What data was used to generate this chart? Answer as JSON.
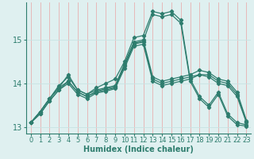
{
  "xlabel": "Humidex (Indice chaleur)",
  "bg_color": "#dff0f0",
  "grid_color": "#c8e4e4",
  "line_color": "#2e7d6e",
  "xlim": [
    -0.5,
    23.5
  ],
  "ylim": [
    12.85,
    15.85
  ],
  "yticks": [
    13,
    14,
    15
  ],
  "xticks": [
    0,
    1,
    2,
    3,
    4,
    5,
    6,
    7,
    8,
    9,
    10,
    11,
    12,
    13,
    14,
    15,
    16,
    17,
    18,
    19,
    20,
    21,
    22,
    23
  ],
  "series": [
    [
      13.1,
      13.35,
      13.65,
      13.95,
      14.15,
      13.85,
      13.75,
      13.85,
      13.9,
      13.95,
      14.45,
      14.95,
      15.0,
      14.15,
      14.05,
      14.1,
      14.15,
      14.2,
      14.3,
      14.25,
      14.1,
      14.05,
      13.8,
      13.15
    ],
    [
      13.1,
      13.35,
      13.65,
      13.9,
      14.05,
      13.8,
      13.7,
      13.8,
      13.85,
      13.9,
      14.4,
      14.9,
      14.95,
      14.1,
      14.0,
      14.05,
      14.1,
      14.15,
      14.2,
      14.2,
      14.05,
      14.0,
      13.75,
      13.12
    ],
    [
      13.1,
      13.3,
      13.6,
      13.85,
      14.0,
      13.75,
      13.65,
      13.78,
      13.82,
      13.88,
      14.35,
      14.85,
      14.9,
      14.05,
      13.95,
      14.0,
      14.05,
      14.1,
      14.2,
      14.15,
      14.0,
      13.95,
      13.7,
      13.1
    ],
    [
      13.1,
      13.35,
      13.65,
      13.9,
      14.2,
      13.85,
      13.75,
      13.9,
      14.0,
      14.1,
      14.5,
      15.05,
      15.1,
      15.65,
      15.6,
      15.65,
      15.45,
      14.1,
      13.7,
      13.5,
      13.8,
      13.3,
      13.1,
      13.05
    ],
    [
      13.1,
      13.3,
      13.6,
      13.85,
      14.05,
      13.8,
      13.7,
      13.82,
      13.88,
      13.92,
      14.42,
      14.92,
      14.97,
      15.58,
      15.53,
      15.58,
      15.38,
      14.05,
      13.65,
      13.45,
      13.75,
      13.25,
      13.05,
      13.02
    ]
  ]
}
